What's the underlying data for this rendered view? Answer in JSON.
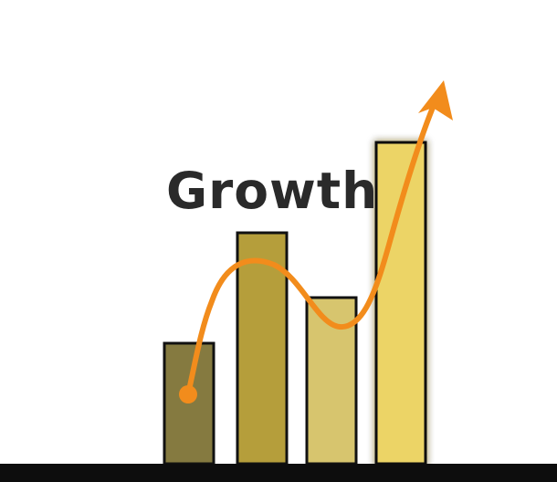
{
  "title": "Growth",
  "colors": {
    "background": "#ffffff",
    "ground": "#0d0d0d",
    "bar_outline": "#111111",
    "arrow": "#f28c1c",
    "title_text": "#2a2a2a"
  },
  "icons": [
    "growth-arrow-icon"
  ],
  "chart_data": {
    "type": "bar",
    "title": "Growth",
    "values_relative": [
      0.37,
      0.71,
      0.51,
      0.99
    ],
    "bar_colors": [
      "#857a40",
      "#b59e3b",
      "#d7c56e",
      "#ecd466"
    ],
    "trend_line": {
      "color": "#f28c1c",
      "shape": "rising wave ending in an arrowhead"
    }
  }
}
